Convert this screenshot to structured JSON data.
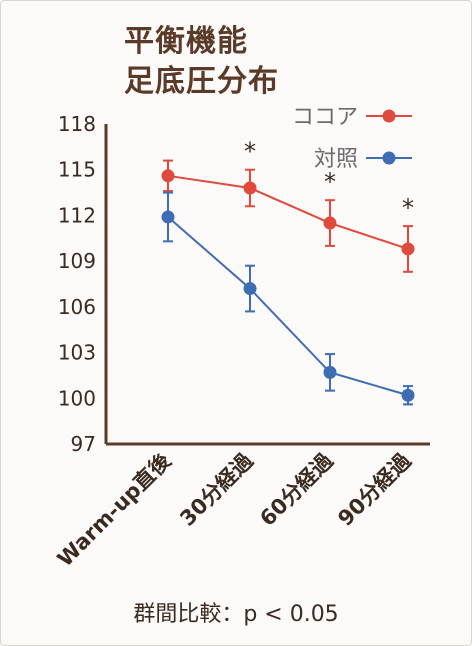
{
  "chart_data": {
    "type": "line",
    "title_lines": [
      "平衡機能",
      "足底圧分布"
    ],
    "categories": [
      "Warm-up直後",
      "30分経過",
      "60分経過",
      "90分経過"
    ],
    "ylim": [
      97,
      118
    ],
    "yticks": [
      97,
      100,
      103,
      106,
      109,
      112,
      115,
      118
    ],
    "series": [
      {
        "name": "ココア",
        "color": "#e04a3c",
        "values": [
          114.6,
          113.8,
          111.5,
          109.8
        ],
        "errors": [
          1.0,
          1.2,
          1.5,
          1.5
        ]
      },
      {
        "name": "対照",
        "color": "#3e6db3",
        "values": [
          111.9,
          107.2,
          101.7,
          100.2
        ],
        "errors": [
          1.6,
          1.5,
          1.2,
          0.6
        ]
      }
    ],
    "significance": [
      "",
      "*",
      "*",
      "*"
    ],
    "legend_position": "top-right",
    "footnote": "群間比較：p < 0.05"
  }
}
